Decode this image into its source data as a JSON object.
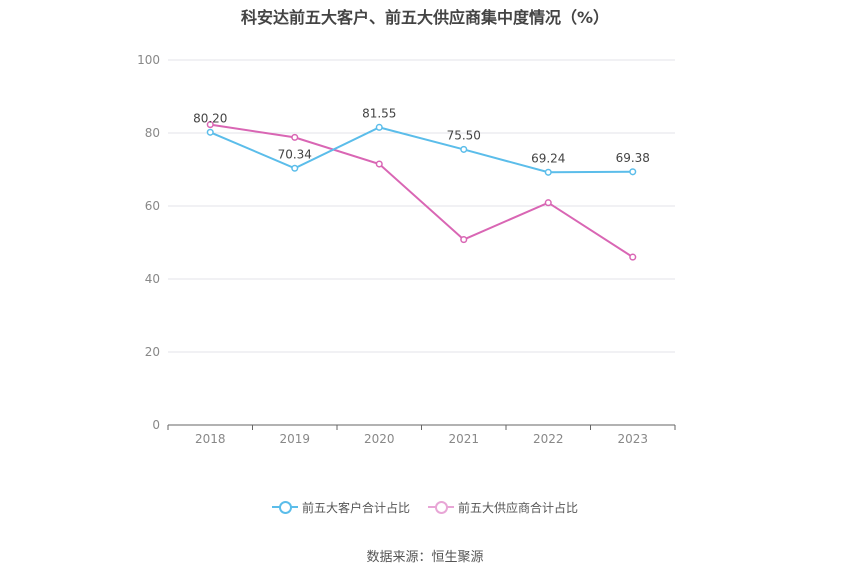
{
  "title": "科安达前五大客户、前五大供应商集中度情况（%）",
  "source": "数据来源：恒生聚源",
  "colors": {
    "series1": "#5bbdea",
    "series2": "#d966b4"
  },
  "chart_data": {
    "type": "line",
    "title": "科安达前五大客户、前五大供应商集中度情况（%）",
    "x": [
      "2018",
      "2019",
      "2020",
      "2021",
      "2022",
      "2023"
    ],
    "ylim": [
      0,
      100
    ],
    "yticks": [
      0,
      20,
      40,
      60,
      80,
      100
    ],
    "grid": true,
    "legend_position": "bottom",
    "series": [
      {
        "name": "前五大客户合计占比",
        "values": [
          80.2,
          70.34,
          81.55,
          75.5,
          69.24,
          69.38
        ],
        "labels": [
          "80.20",
          "70.34",
          "81.55",
          "75.50",
          "69.24",
          "69.38"
        ]
      },
      {
        "name": "前五大供应商合计占比",
        "values": [
          82.3,
          78.8,
          71.5,
          50.8,
          60.9,
          46.0
        ]
      }
    ]
  }
}
